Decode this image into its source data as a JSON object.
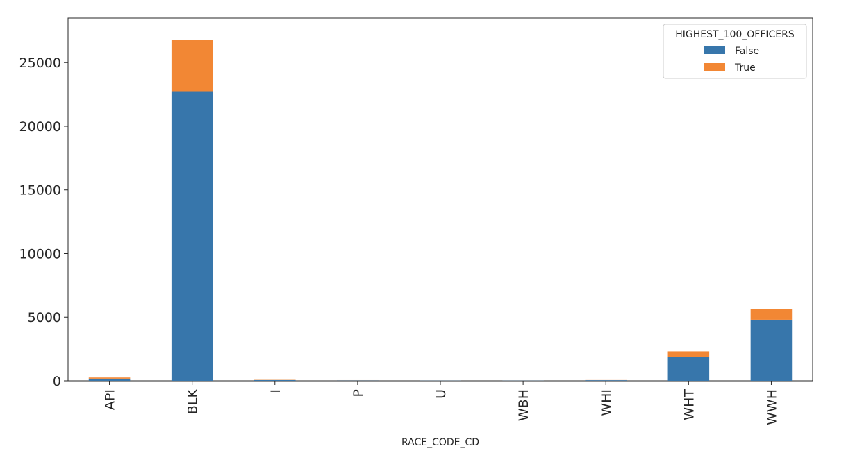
{
  "chart_data": {
    "type": "bar",
    "stacked": true,
    "categories": [
      "API",
      "BLK",
      "I",
      "P",
      "U",
      "WBH",
      "WHI",
      "WHT",
      "WWH"
    ],
    "series": [
      {
        "name": "False",
        "values": [
          170,
          22750,
          60,
          40,
          10,
          10,
          50,
          1900,
          4800
        ],
        "color": "#3776ab"
      },
      {
        "name": "True",
        "values": [
          90,
          4030,
          20,
          15,
          0,
          0,
          10,
          420,
          820
        ],
        "color": "#f28734"
      }
    ],
    "xlabel": "RACE_CODE_CD",
    "ylabel": "",
    "ylim": [
      0,
      28500
    ],
    "yticks": [
      0,
      5000,
      10000,
      15000,
      20000,
      25000
    ],
    "legend": {
      "title": "HIGHEST_100_OFFICERS",
      "position": "top-right"
    },
    "grid": false
  }
}
